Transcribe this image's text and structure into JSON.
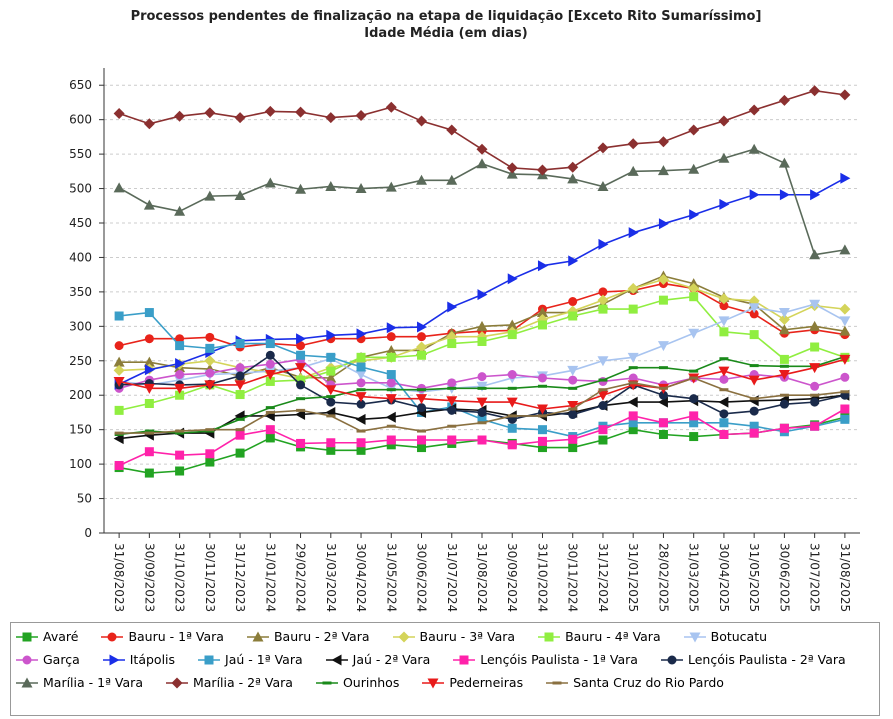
{
  "chart_data": {
    "type": "line",
    "title": "Processos pendentes de finalização na etapa de liquidação [Exceto Rito Sumaríssimo]",
    "subtitle": "Idade Média (em dias)",
    "categories": [
      "31/08/2023",
      "30/09/2023",
      "31/10/2023",
      "30/11/2023",
      "31/12/2023",
      "31/01/2024",
      "29/02/2024",
      "31/03/2024",
      "30/04/2024",
      "31/05/2024",
      "30/06/2024",
      "31/07/2024",
      "31/08/2024",
      "30/09/2024",
      "31/10/2024",
      "30/11/2024",
      "31/12/2024",
      "31/01/2025",
      "28/02/2025",
      "31/03/2025",
      "30/04/2025",
      "31/05/2025",
      "30/06/2025",
      "31/07/2025",
      "31/08/2025"
    ],
    "ylim": [
      0,
      675
    ],
    "yticks": [
      0,
      50,
      100,
      150,
      200,
      250,
      300,
      350,
      400,
      450,
      500,
      550,
      600,
      650
    ],
    "grid": true,
    "series": [
      {
        "name": "Avaré",
        "color": "#22a322",
        "marker": "square",
        "values": [
          95,
          87,
          90,
          103,
          116,
          138,
          125,
          120,
          120,
          128,
          124,
          130,
          135,
          130,
          124,
          124,
          135,
          150,
          143,
          140,
          143,
          145,
          152,
          157,
          168
        ]
      },
      {
        "name": "Bauru - 1ª Vara",
        "color": "#e8231a",
        "marker": "circle",
        "values": [
          272,
          282,
          282,
          284,
          270,
          275,
          272,
          282,
          282,
          285,
          285,
          290,
          293,
          294,
          325,
          336,
          350,
          352,
          362,
          355,
          330,
          318,
          290,
          295,
          288
        ]
      },
      {
        "name": "Bauru - 2ª Vara",
        "color": "#8b7d3a",
        "marker": "triangle-up",
        "values": [
          248,
          248,
          240,
          238,
          228,
          240,
          226,
          225,
          255,
          265,
          265,
          290,
          300,
          302,
          320,
          320,
          332,
          355,
          373,
          362,
          342,
          332,
          295,
          300,
          293
        ]
      },
      {
        "name": "Bauru - 3ª Vara",
        "color": "#d4d45a",
        "marker": "diamond",
        "values": [
          236,
          238,
          245,
          250,
          240,
          233,
          224,
          240,
          250,
          255,
          270,
          285,
          285,
          292,
          310,
          322,
          338,
          355,
          368,
          355,
          340,
          337,
          310,
          330,
          325
        ]
      },
      {
        "name": "Bauru - 4ª Vara",
        "color": "#90ee40",
        "marker": "square",
        "values": [
          178,
          188,
          200,
          215,
          201,
          220,
          222,
          235,
          255,
          255,
          258,
          275,
          278,
          288,
          302,
          315,
          325,
          325,
          338,
          343,
          292,
          288,
          252,
          270,
          255
        ]
      },
      {
        "name": "Botucatu",
        "color": "#a8c4f0",
        "marker": "triangle-down",
        "values": [
          220,
          215,
          222,
          230,
          232,
          235,
          240,
          253,
          230,
          210,
          205,
          210,
          213,
          225,
          228,
          236,
          250,
          255,
          272,
          290,
          308,
          327,
          320,
          332,
          308
        ]
      },
      {
        "name": "Garça",
        "color": "#cc55cc",
        "marker": "circle",
        "values": [
          210,
          222,
          230,
          232,
          240,
          245,
          252,
          215,
          218,
          218,
          210,
          218,
          227,
          230,
          225,
          222,
          220,
          225,
          215,
          225,
          223,
          230,
          226,
          213,
          226
        ]
      },
      {
        "name": "Itápolis",
        "color": "#1a2ee8",
        "marker": "triangle-right",
        "values": [
          216,
          237,
          246,
          262,
          279,
          281,
          282,
          287,
          289,
          298,
          299,
          328,
          346,
          369,
          388,
          395,
          419,
          436,
          449,
          462,
          477,
          491,
          491,
          491,
          515
        ]
      },
      {
        "name": "Jaú - 1ª Vara",
        "color": "#3a9ec8",
        "marker": "square",
        "values": [
          315,
          320,
          272,
          268,
          275,
          275,
          258,
          255,
          241,
          230,
          175,
          183,
          165,
          152,
          150,
          140,
          155,
          160,
          160,
          160,
          160,
          155,
          147,
          155,
          165
        ]
      },
      {
        "name": "Jaú - 2ª Vara",
        "color": "#111111",
        "marker": "triangle-left",
        "values": [
          137,
          142,
          145,
          145,
          170,
          170,
          172,
          175,
          165,
          168,
          175,
          180,
          178,
          170,
          170,
          175,
          185,
          190,
          190,
          192,
          190,
          192,
          193,
          195,
          200
        ]
      },
      {
        "name": "Lençóis Paulista - 1ª Vara",
        "color": "#ff22aa",
        "marker": "square",
        "values": [
          98,
          118,
          113,
          115,
          142,
          150,
          130,
          131,
          131,
          135,
          135,
          135,
          135,
          128,
          133,
          136,
          150,
          170,
          160,
          170,
          143,
          145,
          152,
          155,
          180
        ]
      },
      {
        "name": "Lençóis Paulista - 2ª Vara",
        "color": "#1a2a4a",
        "marker": "circle",
        "values": [
          215,
          217,
          215,
          216,
          228,
          258,
          215,
          190,
          187,
          193,
          182,
          178,
          175,
          165,
          175,
          172,
          185,
          215,
          200,
          195,
          173,
          177,
          187,
          190,
          200
        ]
      },
      {
        "name": "Marília - 1ª Vara",
        "color": "#5a6a5a",
        "marker": "triangle-up",
        "values": [
          501,
          476,
          467,
          489,
          490,
          508,
          499,
          503,
          500,
          502,
          512,
          512,
          536,
          521,
          520,
          514,
          503,
          525,
          526,
          528,
          544,
          557,
          537,
          404,
          411
        ]
      },
      {
        "name": "Marília - 2ª Vara",
        "color": "#8b3030",
        "marker": "diamond",
        "values": [
          609,
          594,
          605,
          610,
          603,
          612,
          611,
          603,
          606,
          618,
          598,
          585,
          557,
          530,
          527,
          531,
          559,
          565,
          568,
          585,
          598,
          614,
          628,
          642,
          636
        ]
      },
      {
        "name": "Ourinhos",
        "color": "#1a8a1a",
        "marker": "dash",
        "values": [
          143,
          148,
          145,
          148,
          165,
          182,
          195,
          198,
          208,
          208,
          208,
          210,
          210,
          210,
          213,
          210,
          222,
          240,
          240,
          235,
          253,
          243,
          242,
          242,
          256
        ]
      },
      {
        "name": "Pederneiras",
        "color": "#e81a1a",
        "marker": "triangle-down",
        "values": [
          220,
          210,
          210,
          215,
          215,
          230,
          240,
          208,
          198,
          195,
          195,
          192,
          190,
          190,
          180,
          185,
          200,
          215,
          210,
          225,
          235,
          222,
          230,
          240,
          252
        ]
      },
      {
        "name": "Santa Cruz do Rio Pardo",
        "color": "#8a7040",
        "marker": "dash",
        "values": [
          145,
          145,
          148,
          150,
          150,
          175,
          178,
          170,
          148,
          155,
          148,
          155,
          160,
          170,
          170,
          180,
          208,
          218,
          210,
          225,
          208,
          195,
          200,
          200,
          205
        ]
      }
    ]
  }
}
